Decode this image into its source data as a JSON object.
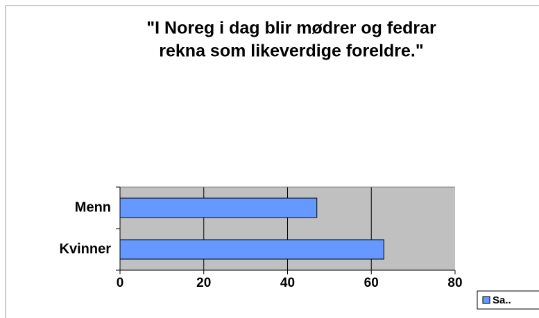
{
  "chart_data": {
    "type": "hbar",
    "title": [
      "\"I Noreg i dag blir mødrer og fedrar",
      "rekna som likeverdige foreldre.\""
    ],
    "categories": [
      "Menn",
      "Kvinner"
    ],
    "series": [
      {
        "name": "Sa..",
        "color": "#6699ff",
        "values": [
          47,
          63
        ]
      }
    ],
    "xlim": [
      0,
      80
    ],
    "xticks": [
      0,
      20,
      40,
      60,
      80
    ],
    "grid": true,
    "legend": "bottom-right"
  }
}
